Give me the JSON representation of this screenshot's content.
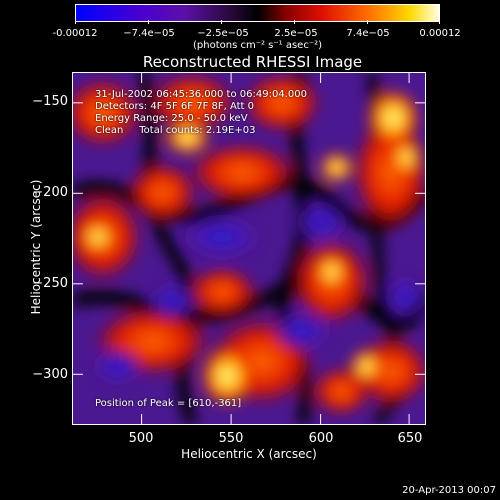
{
  "colorbar": {
    "labels": [
      "-0.00012",
      "−7.4e−05",
      "−2.5e−05",
      "2.5e−05",
      "7.4e−05",
      "0.00012"
    ],
    "units": "(photons cm⁻² s⁻¹ asec⁻²)"
  },
  "title": "Reconstructed RHESSI Image",
  "info": {
    "line1": "31-Jul-2002 06:45:36.000 to 06:49:04.000",
    "line2": "Detectors: 4F 5F 6F 7F 8F, Att 0",
    "line3": "Energy Range: 25.0 - 50.0 keV",
    "line4": "Clean     Total counts: 2.19E+03",
    "peak": "Position of Peak = [610,-361]"
  },
  "axes": {
    "xlabel": "Heliocentric X (arcsec)",
    "ylabel": "Heliocentric Y (arcsec)",
    "xticks": [
      "500",
      "550",
      "600",
      "650"
    ],
    "yticks": [
      "−150",
      "−200",
      "−250",
      "−300"
    ]
  },
  "footer": {
    "date": "20-Apr-2013 00:07"
  },
  "colors": {
    "background": "#000000",
    "low": "#0000ff",
    "mid": "#000000",
    "high": "#ffffe0"
  }
}
